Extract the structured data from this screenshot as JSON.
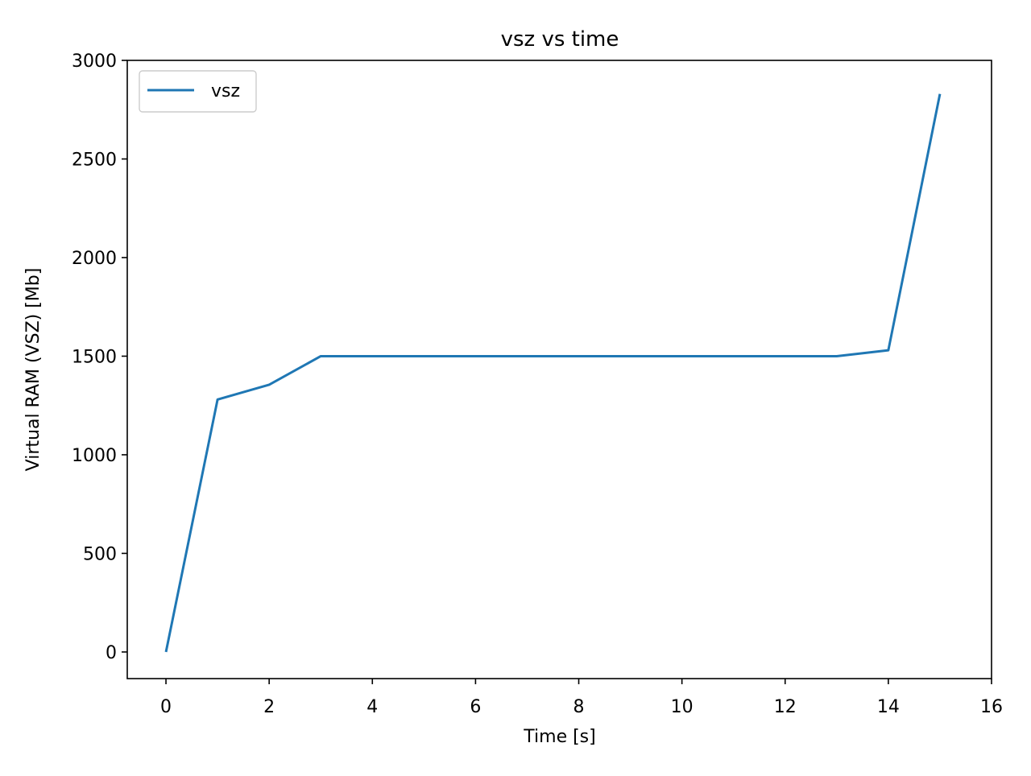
{
  "chart_data": {
    "type": "line",
    "title": "vsz vs time",
    "xlabel": "Time [s]",
    "ylabel": "Virtual RAM (VSZ) [Mb]",
    "xlim": [
      -0.75,
      16
    ],
    "ylim": [
      -135,
      3000
    ],
    "xticks": [
      0,
      2,
      4,
      6,
      8,
      10,
      12,
      14,
      16
    ],
    "yticks": [
      0,
      500,
      1000,
      1500,
      2000,
      2500,
      3000
    ],
    "grid": false,
    "legend_placement": "top-left",
    "series": [
      {
        "name": "vsz",
        "color": "#1f77b4",
        "x": [
          0,
          1,
          2,
          3,
          4,
          5,
          6,
          7,
          8,
          9,
          10,
          11,
          12,
          13,
          14,
          15
        ],
        "values": [
          0,
          1280,
          1355,
          1500,
          1500,
          1500,
          1500,
          1500,
          1500,
          1500,
          1500,
          1500,
          1500,
          1500,
          1530,
          2830
        ]
      }
    ]
  }
}
